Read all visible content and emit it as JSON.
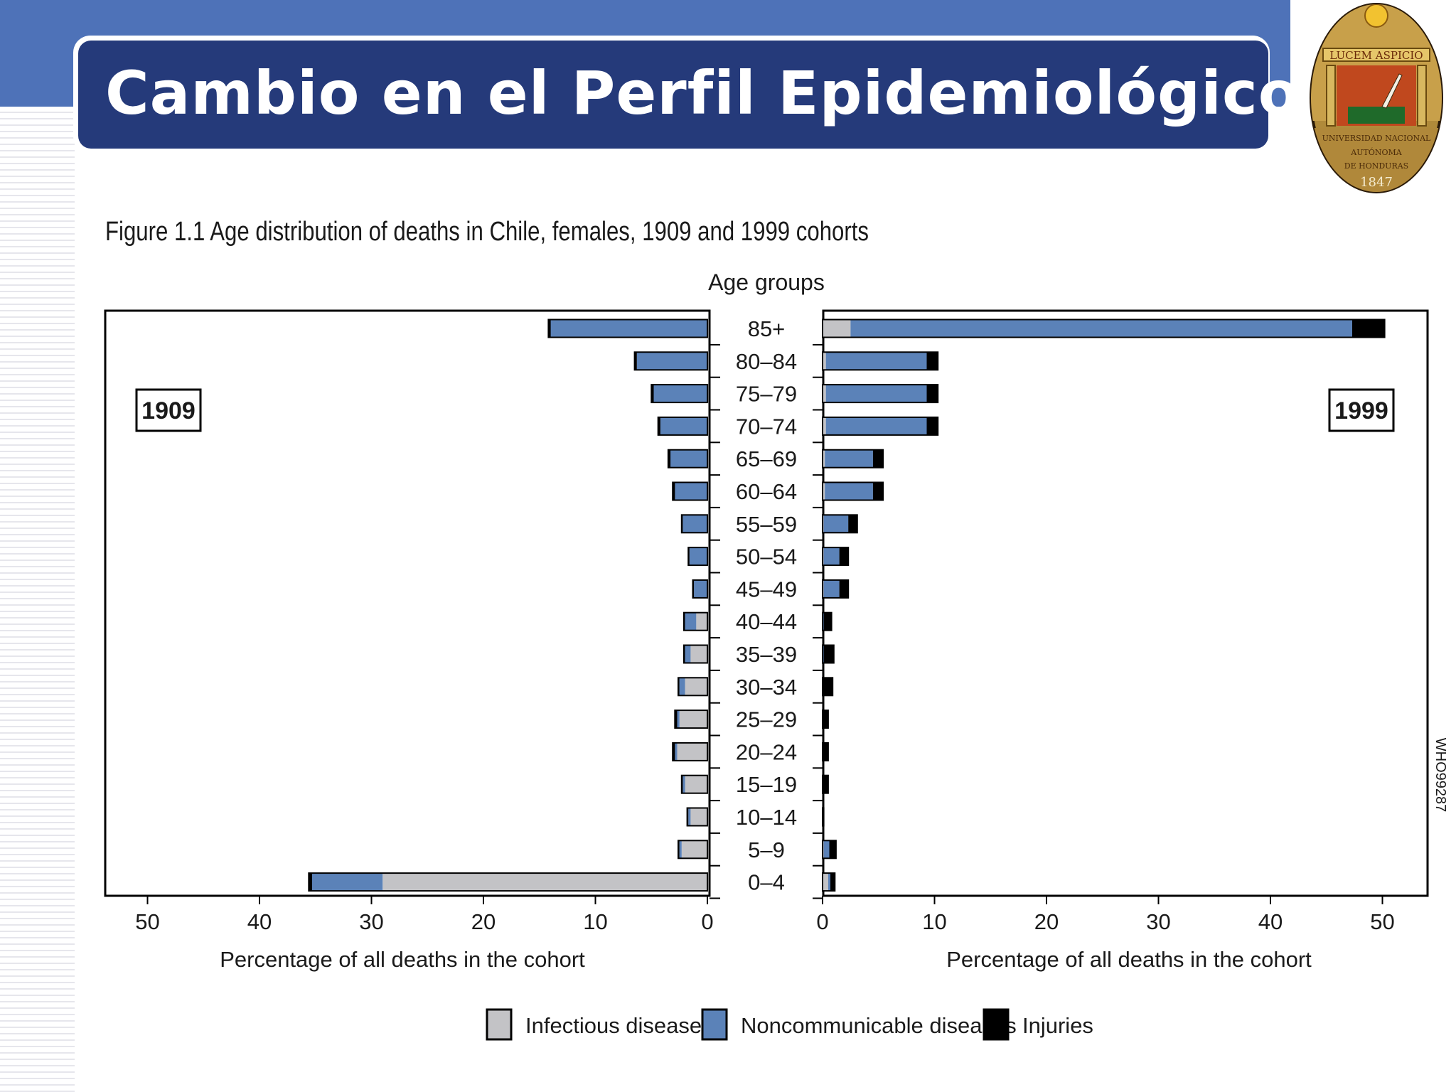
{
  "slide": {
    "title": "Cambio en el Perfil Epidemiológico",
    "logo": {
      "motto": "LUCEM ASPICIO",
      "name_lines": [
        "UNIVERSIDAD NACIONAL",
        "AUTÓNOMA",
        "DE HONDURAS"
      ],
      "year": "1847"
    },
    "figure_caption": "Figure 1.1  Age distribution of deaths in Chile, females, 1909 and 1999 cohorts",
    "side_code": "WHO99287"
  },
  "colors": {
    "band": "#4e72b8",
    "title_bg": "#253a7a",
    "infectious": "#c3c3c6",
    "noncommunicable": "#5b82b8",
    "injuries": "#000000"
  },
  "chart_data": {
    "type": "bar",
    "orientation": "horizontal",
    "center_axis_label": "Age groups",
    "categories": [
      "85+",
      "80–84",
      "75–79",
      "70–74",
      "65–69",
      "60–64",
      "55–59",
      "50–54",
      "45–49",
      "40–44",
      "35–39",
      "30–34",
      "25–29",
      "20–24",
      "15–19",
      "10–14",
      "5–9",
      "0–4"
    ],
    "xlabel": "Percentage of all deaths in the cohort",
    "xlim": [
      0,
      50
    ],
    "xticks": [
      0,
      10,
      20,
      30,
      40,
      50
    ],
    "legend_position": "bottom",
    "panels": [
      {
        "label": "1909",
        "direction": "left",
        "series": [
          {
            "name": "Infectious diseases",
            "values": [
              0.0,
              0.0,
              0.0,
              0.0,
              0.0,
              0.0,
              0.0,
              0.0,
              0.0,
              1.0,
              1.5,
              2.0,
              2.5,
              2.7,
              2.0,
              1.5,
              2.3,
              29.0
            ]
          },
          {
            "name": "Noncommunicable diseases",
            "values": [
              14.0,
              6.3,
              4.8,
              4.2,
              3.3,
              2.9,
              2.2,
              1.6,
              1.2,
              1.0,
              0.5,
              0.5,
              0.2,
              0.2,
              0.2,
              0.2,
              0.2,
              6.3
            ]
          },
          {
            "name": "Injuries",
            "values": [
              0.2,
              0.2,
              0.2,
              0.2,
              0.2,
              0.2,
              0.1,
              0.1,
              0.1,
              0.1,
              0.1,
              0.1,
              0.2,
              0.2,
              0.1,
              0.1,
              0.1,
              0.3
            ]
          }
        ]
      },
      {
        "label": "1999",
        "direction": "right",
        "series": [
          {
            "name": "Infectious diseases",
            "values": [
              2.5,
              0.3,
              0.3,
              0.3,
              0.2,
              0.2,
              0.1,
              0.1,
              0.1,
              0.0,
              0.0,
              0.0,
              0.0,
              0.0,
              0.0,
              0.0,
              0.1,
              0.5
            ]
          },
          {
            "name": "Noncommunicable diseases",
            "values": [
              44.8,
              9.0,
              9.0,
              9.0,
              4.3,
              4.3,
              2.2,
              1.4,
              1.4,
              0.1,
              0.1,
              0.0,
              0.0,
              0.0,
              0.0,
              0.0,
              0.5,
              0.2
            ]
          },
          {
            "name": "Injuries",
            "values": [
              2.9,
              1.0,
              1.0,
              1.0,
              0.9,
              0.9,
              0.8,
              0.8,
              0.8,
              0.7,
              0.9,
              0.9,
              0.5,
              0.5,
              0.5,
              0.1,
              0.6,
              0.4
            ]
          }
        ]
      }
    ]
  }
}
